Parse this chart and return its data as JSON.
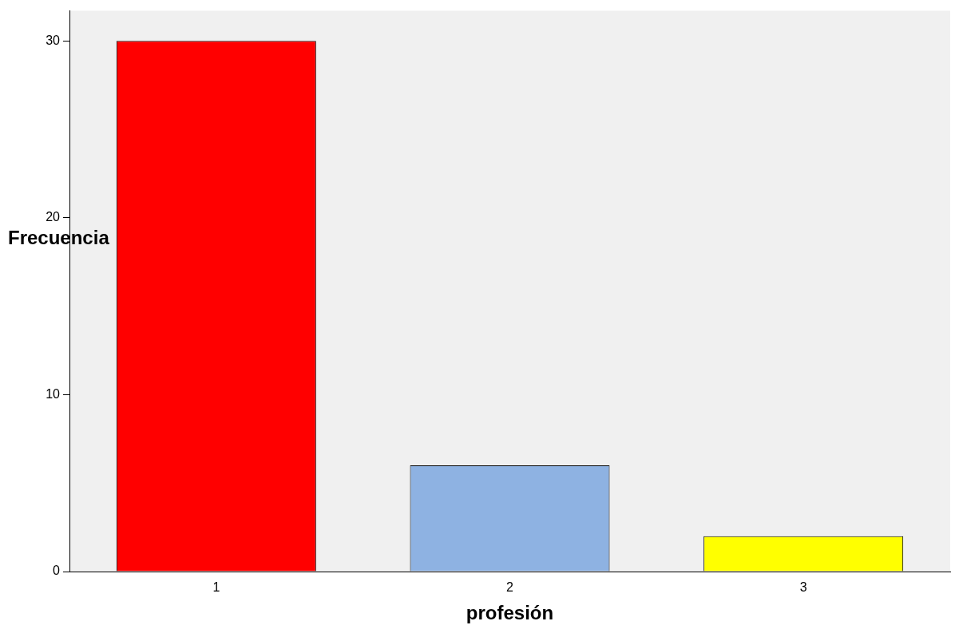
{
  "chart_data": {
    "type": "bar",
    "xlabel": "profesión",
    "ylabel": "Frecuencia",
    "categories": [
      "1",
      "2",
      "3"
    ],
    "values": [
      30,
      6,
      2
    ],
    "colors": [
      "#ff0000",
      "#8eb2e2",
      "#ffff00"
    ],
    "ylim": [
      0,
      31.7
    ],
    "yticks": [
      0,
      10,
      20,
      30
    ],
    "grid": false,
    "legend": false
  }
}
